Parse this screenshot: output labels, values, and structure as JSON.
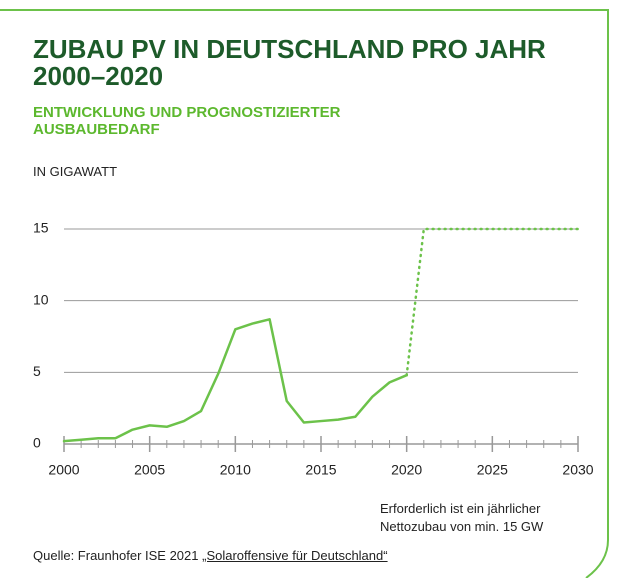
{
  "chart_data": {
    "type": "line",
    "title": "ZUBAU PV IN DEUTSCHLAND PRO JAHR 2000–2020",
    "subtitle": "ENTWICKLUNG UND PROGNOSTIZIERTER AUSBAUBEDARF",
    "y_label": "IN GIGAWATT",
    "x": [
      2000,
      2001,
      2002,
      2003,
      2004,
      2005,
      2006,
      2007,
      2008,
      2009,
      2010,
      2011,
      2012,
      2013,
      2014,
      2015,
      2016,
      2017,
      2018,
      2019,
      2020,
      2021,
      2022,
      2023,
      2024,
      2025,
      2026,
      2027,
      2028,
      2029,
      2030
    ],
    "series": [
      {
        "color": "#6cc24a",
        "style": "solid",
        "values": [
          0.2,
          0.3,
          0.4,
          0.4,
          1.0,
          1.3,
          1.2,
          1.6,
          2.3,
          4.9,
          8.0,
          8.4,
          8.7,
          3.0,
          1.5,
          1.6,
          1.7,
          1.9,
          3.3,
          4.3,
          4.8,
          null,
          null,
          null,
          null,
          null,
          null,
          null,
          null,
          null,
          null
        ]
      },
      {
        "color": "#6cc24a",
        "style": "dotted",
        "values": [
          null,
          null,
          null,
          null,
          null,
          null,
          null,
          null,
          null,
          null,
          null,
          null,
          null,
          null,
          null,
          null,
          null,
          null,
          null,
          null,
          4.8,
          15,
          15,
          15,
          15,
          15,
          15,
          15,
          15,
          15,
          15
        ]
      }
    ],
    "xlim": [
      2000,
      2030
    ],
    "xticks": [
      2000,
      2005,
      2010,
      2015,
      2020,
      2025,
      2030
    ],
    "ylim": [
      0,
      15
    ],
    "yticks": [
      0,
      5,
      10,
      15
    ],
    "grid": true,
    "annotation": [
      "Erforderlich ist ein jährlicher",
      "Nettozubau von min. 15 GW"
    ],
    "source": "Quelle: Fraunhofer ISE 2021 ",
    "source_link": "„Solaroffensive für Deutschland“"
  }
}
